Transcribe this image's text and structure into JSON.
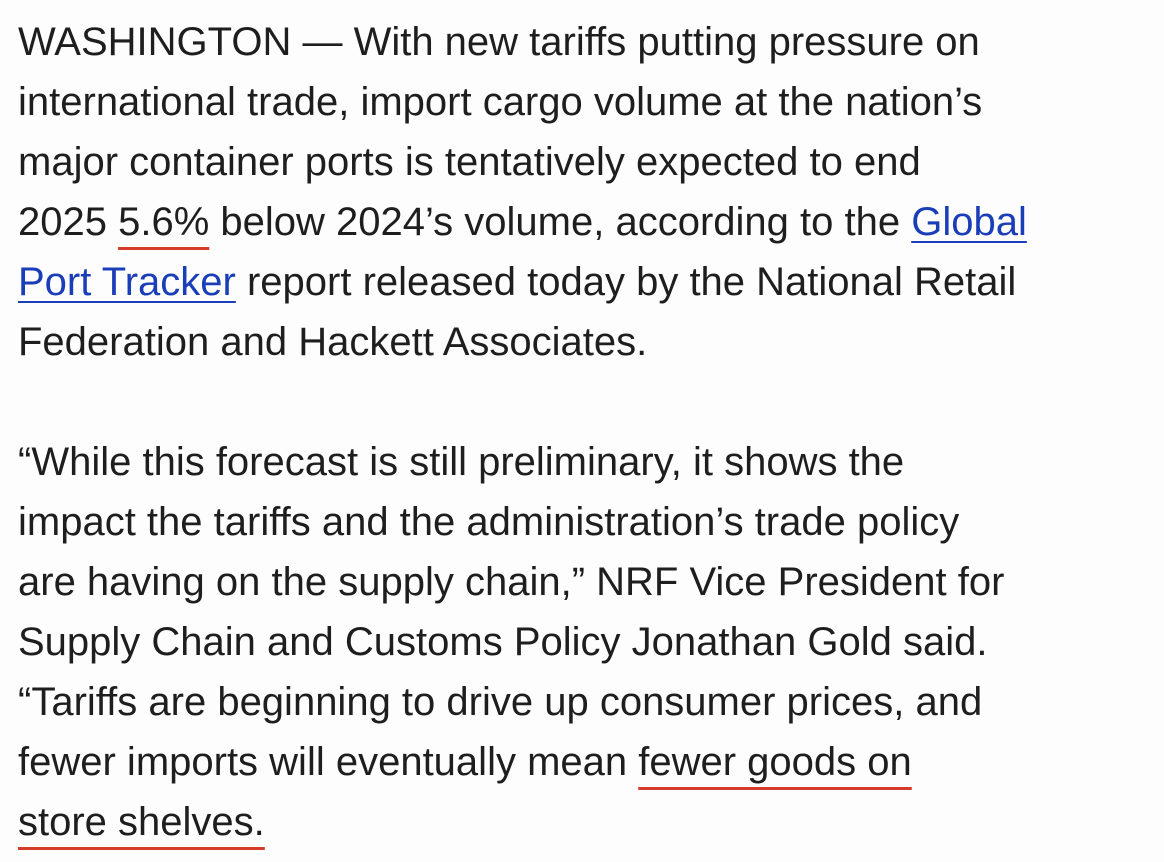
{
  "article": {
    "paragraphs": [
      {
        "lines": [
          [
            {
              "text": "WASHINGTON — With new tariffs putting pressure on"
            }
          ],
          [
            {
              "text": "international trade, import cargo volume at the nation’s"
            }
          ],
          [
            {
              "text": "major container ports is tentatively expected to end"
            }
          ],
          [
            {
              "text": "2025 "
            },
            {
              "text": "5.6%",
              "mark": "highlight"
            },
            {
              "text": " below 2024’s volume, according to the "
            },
            {
              "text": "Global",
              "mark": "link"
            }
          ],
          [
            {
              "text": "Port Tracker",
              "mark": "link"
            },
            {
              "text": " report released today by the National Retail"
            }
          ],
          [
            {
              "text": "Federation and Hackett Associates."
            }
          ]
        ]
      },
      {
        "lines": [
          [
            {
              "text": "“While this forecast is still preliminary, it shows the"
            }
          ],
          [
            {
              "text": "impact the tariffs and the administration’s trade policy"
            }
          ],
          [
            {
              "text": "are having on the supply chain,” NRF Vice President for"
            }
          ],
          [
            {
              "text": "Supply Chain and Customs Policy Jonathan Gold said."
            }
          ],
          [
            {
              "text": "“Tariffs are beginning to drive up consumer prices, and"
            }
          ],
          [
            {
              "text": "fewer imports will eventually mean "
            },
            {
              "text": "fewer goods on",
              "mark": "highlight"
            }
          ],
          [
            {
              "text": "store shelves.",
              "mark": "highlight"
            }
          ]
        ]
      }
    ]
  }
}
